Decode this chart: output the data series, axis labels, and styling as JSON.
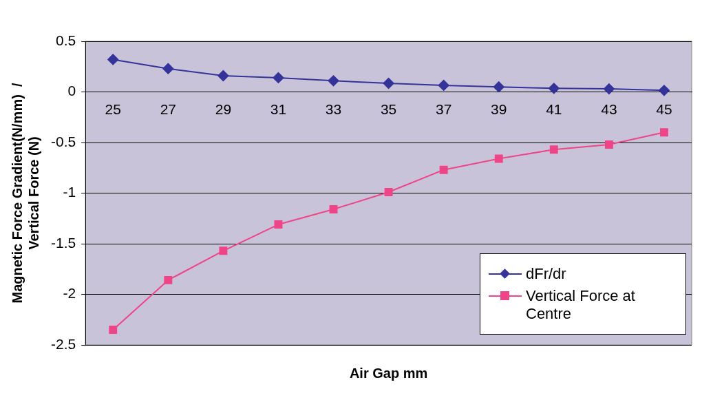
{
  "chart_data": {
    "type": "line",
    "xlabel": "Air Gap mm",
    "ylabel": "Magnetic Force Gradient(N/mm)  / Vertical Force (N)",
    "categories": [
      "25",
      "27",
      "29",
      "31",
      "33",
      "35",
      "37",
      "39",
      "41",
      "43",
      "45"
    ],
    "series": [
      {
        "name": "dFr/dr",
        "color": "#333399",
        "marker": "diamond",
        "values": [
          0.32,
          0.23,
          0.16,
          0.14,
          0.11,
          0.085,
          0.065,
          0.05,
          0.035,
          0.03,
          0.015
        ]
      },
      {
        "name": "Vertical Force at Centre",
        "color": "#ee4488",
        "marker": "square",
        "values": [
          -2.35,
          -1.86,
          -1.57,
          -1.31,
          -1.16,
          -0.99,
          -0.77,
          -0.66,
          -0.57,
          -0.52,
          -0.4
        ]
      }
    ],
    "ylim": [
      -2.5,
      0.5
    ],
    "yticks": [
      -2.5,
      -2,
      -1.5,
      -1,
      -0.5,
      0,
      0.5
    ],
    "grid": "y",
    "legend": "bottom right",
    "line_style": "solid"
  }
}
